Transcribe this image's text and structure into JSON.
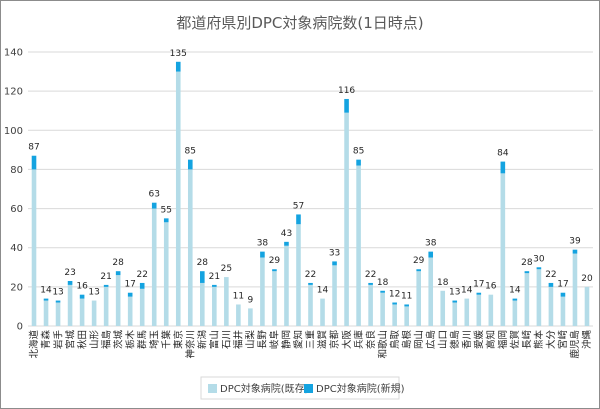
{
  "chart_data": {
    "type": "bar",
    "stacked": true,
    "title": "都道府県別DPC対象病院数(1日時点)",
    "xlabel": "",
    "ylabel": "",
    "ylim": [
      0,
      140
    ],
    "yticks": [
      0,
      20,
      40,
      60,
      80,
      100,
      120,
      140
    ],
    "grid": true,
    "legend_position": "bottom",
    "categories": [
      "北海道",
      "青森",
      "岩手",
      "宮城",
      "秋田",
      "山形",
      "福島",
      "茨城",
      "栃木",
      "群馬",
      "埼玉",
      "千葉",
      "東京",
      "神奈川",
      "新潟",
      "富山",
      "石川",
      "福井",
      "山梨",
      "長野",
      "岐阜",
      "静岡",
      "愛知",
      "三重",
      "滋賀",
      "京都",
      "大阪",
      "兵庫",
      "奈良",
      "和歌山",
      "鳥取",
      "島根",
      "岡山",
      "広島",
      "山口",
      "徳島",
      "香川",
      "愛媛",
      "高知",
      "福岡",
      "佐賀",
      "長崎",
      "熊本",
      "大分",
      "宮崎",
      "鹿児島",
      "沖縄"
    ],
    "series": [
      {
        "name": "DPC対象病院(既存)",
        "color": "#b4dce8",
        "values": [
          80,
          13,
          12,
          21,
          14,
          13,
          20,
          26,
          15,
          19,
          60,
          53,
          130,
          80,
          22,
          20,
          25,
          11,
          9,
          35,
          28,
          41,
          52,
          21,
          14,
          31,
          109,
          82,
          21,
          17,
          11,
          10,
          28,
          35,
          18,
          12,
          14,
          16,
          16,
          78,
          13,
          27,
          29,
          20,
          15,
          37,
          20
        ]
      },
      {
        "name": "DPC対象病院(新規)",
        "color": "#14a3e0",
        "values": [
          7,
          1,
          1,
          2,
          2,
          0,
          1,
          2,
          2,
          3,
          3,
          2,
          5,
          5,
          6,
          1,
          0,
          0,
          0,
          3,
          1,
          2,
          5,
          1,
          0,
          2,
          7,
          3,
          1,
          1,
          1,
          1,
          1,
          3,
          0,
          1,
          0,
          1,
          0,
          6,
          1,
          1,
          1,
          2,
          2,
          2,
          0
        ]
      }
    ],
    "data_labels": [
      87,
      14,
      13,
      23,
      16,
      13,
      21,
      28,
      17,
      22,
      63,
      55,
      135,
      85,
      28,
      21,
      25,
      11,
      9,
      38,
      29,
      43,
      57,
      22,
      14,
      33,
      116,
      85,
      22,
      18,
      12,
      11,
      29,
      38,
      18,
      13,
      14,
      17,
      16,
      84,
      14,
      28,
      30,
      22,
      17,
      39,
      20
    ]
  }
}
